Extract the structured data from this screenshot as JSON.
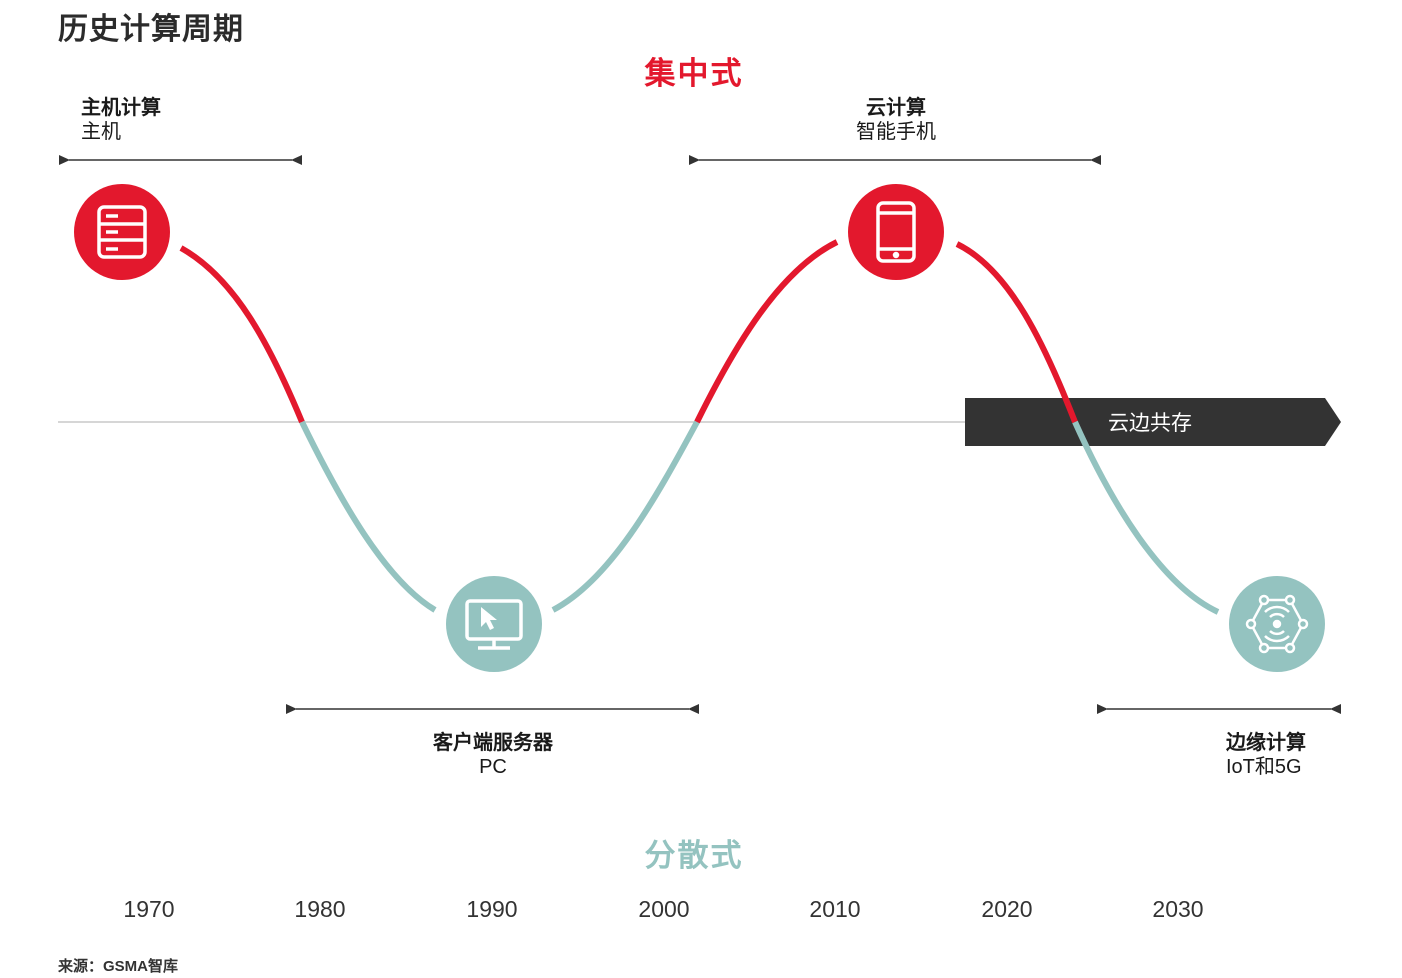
{
  "title": "历史计算周期",
  "centralized": {
    "label": "集中式",
    "color": "#e3182d"
  },
  "decentralized": {
    "label": "分散式",
    "color": "#94c3c0"
  },
  "eras": [
    {
      "id": "mainframe",
      "title": "主机计算",
      "subtitle": "主机",
      "icon": "server-icon",
      "tone": "centralized"
    },
    {
      "id": "client-server",
      "title": "客户端服务器",
      "subtitle": "PC",
      "icon": "monitor-cursor-icon",
      "tone": "decentralized"
    },
    {
      "id": "cloud",
      "title": "云计算",
      "subtitle": "智能手机",
      "icon": "smartphone-icon",
      "tone": "centralized"
    },
    {
      "id": "edge",
      "title": "边缘计算",
      "subtitle": "IoT和5G",
      "icon": "iot-network-icon",
      "tone": "decentralized"
    }
  ],
  "coexistence_label": "云边共存",
  "years": [
    "1970",
    "1980",
    "1990",
    "2000",
    "2010",
    "2020",
    "2030"
  ],
  "source": "来源：GSMA智库",
  "colors": {
    "red": "#e3182d",
    "teal": "#94c3c0",
    "dark": "#333333",
    "baseline": "#c8c8c8"
  }
}
